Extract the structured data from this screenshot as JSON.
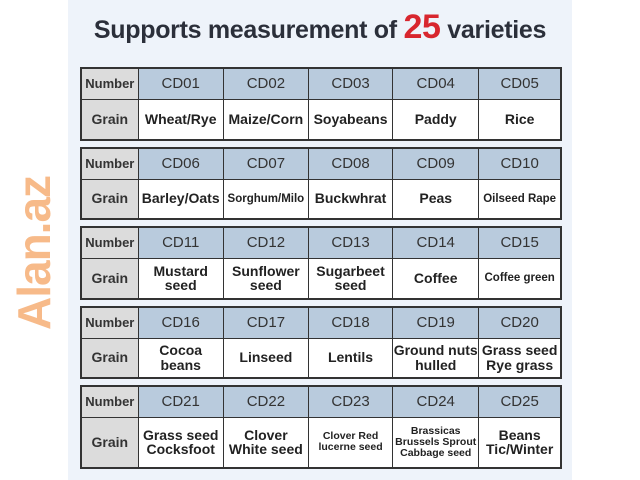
{
  "title": {
    "prefix": "Supports measurement of ",
    "number": "25",
    "suffix": " varieties"
  },
  "row_labels": {
    "number": "Number",
    "grain": "Grain"
  },
  "watermark": "Alan.az",
  "colors": {
    "header_bg": "#b9cbdd",
    "label_bg": "#dcdcdc",
    "accent": "#d8262e",
    "panel_bg": "#eef3fa"
  },
  "tables": [
    {
      "numbers": [
        "CD01",
        "CD02",
        "CD03",
        "CD04",
        "CD05"
      ],
      "grains": [
        "Wheat/Rye",
        "Maize/Corn",
        "Soyabeans",
        "Paddy",
        "Rice"
      ]
    },
    {
      "numbers": [
        "CD06",
        "CD07",
        "CD08",
        "CD09",
        "CD10"
      ],
      "grains": [
        "Barley/Oats",
        "Sorghum/Milo",
        "Buckwhrat",
        "Peas",
        "Oilseed Rape"
      ]
    },
    {
      "numbers": [
        "CD11",
        "CD12",
        "CD13",
        "CD14",
        "CD15"
      ],
      "grains": [
        "Mustard seed",
        "Sunflower seed",
        "Sugarbeet seed",
        "Coffee",
        "Coffee green"
      ]
    },
    {
      "numbers": [
        "CD16",
        "CD17",
        "CD18",
        "CD19",
        "CD20"
      ],
      "grains": [
        "Cocoa beans",
        "Linseed",
        "Lentils",
        "Ground nuts hulled",
        "Grass seed Rye grass"
      ]
    },
    {
      "numbers": [
        "CD21",
        "CD22",
        "CD23",
        "CD24",
        "CD25"
      ],
      "grains": [
        "Grass seed Cocksfoot",
        "Clover White seed",
        "Clover Red lucerne seed",
        "Brassicas Brussels Sprout Cabbage seed",
        "Beans Tic/Winter"
      ]
    }
  ]
}
